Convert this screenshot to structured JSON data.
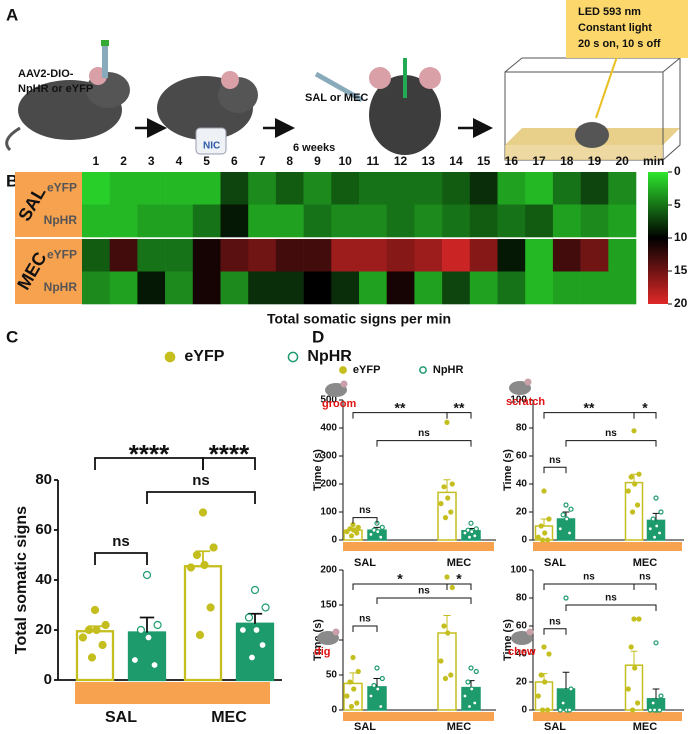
{
  "panel_labels": [
    "A",
    "B",
    "C",
    "D"
  ],
  "panel_a": {
    "virus_lines": [
      "AAV2-DIO-",
      "NpHR or eYFP"
    ],
    "nic": "NIC",
    "wait": "6 weeks",
    "drug": "SAL or MEC",
    "light_lines": [
      "LED 593 nm",
      "Constant light",
      "20 s on, 10 s off"
    ]
  },
  "chart_data": [
    {
      "type": "heatmap",
      "x_categories": [
        1,
        2,
        3,
        4,
        5,
        6,
        7,
        8,
        9,
        10,
        11,
        12,
        13,
        14,
        15,
        16,
        17,
        18,
        19,
        20
      ],
      "x_unit": "min",
      "row_groups": [
        {
          "name": "SAL",
          "rows": [
            "eYFP",
            "NpHR"
          ]
        },
        {
          "name": "MEC",
          "rows": [
            "eYFP",
            "NpHR"
          ]
        }
      ],
      "values": [
        [
          1,
          2,
          2,
          2,
          2,
          7,
          4,
          6,
          4,
          6,
          5,
          5,
          5,
          6,
          8,
          3,
          2,
          5,
          7,
          4
        ],
        [
          2,
          2,
          3,
          3,
          5,
          9,
          3,
          3,
          5,
          4,
          4,
          5,
          4,
          5,
          6,
          5,
          6,
          3,
          4,
          3
        ],
        [
          6,
          13,
          5,
          5,
          11,
          14,
          15,
          13,
          13,
          17,
          17,
          16,
          17,
          19,
          16,
          9,
          2,
          13,
          15,
          3
        ],
        [
          4,
          3,
          9,
          4,
          11,
          4,
          8,
          8,
          10,
          8,
          3,
          11,
          3,
          7,
          3,
          5,
          2,
          3,
          3,
          3
        ]
      ],
      "clim": [
        0,
        20
      ],
      "cticks": [
        0,
        5,
        10,
        15,
        20
      ],
      "colormap": [
        "#2ee62e",
        "#000000",
        "#e02828"
      ],
      "xlabel": "Total somatic signs per min"
    },
    {
      "type": "bar",
      "ylabel": "Total somatic signs",
      "categories": [
        "SAL",
        "MEC"
      ],
      "band_color": "#f7a24f",
      "series": [
        {
          "name": "eYFP",
          "color": "#c4be1e",
          "style": "hollow",
          "values": [
            19.5,
            45.5
          ],
          "errors": [
            2,
            6
          ],
          "points": [
            [
              28,
              22,
              20,
              20,
              17,
              14,
              9
            ],
            [
              67,
              53,
              50,
              46,
              45,
              29,
              18
            ]
          ]
        },
        {
          "name": "NpHR",
          "color": "#1e9b6c",
          "style": "filled",
          "values": [
            19,
            22.5
          ],
          "errors": [
            6,
            4
          ],
          "points": [
            [
              42,
              22,
              20,
              17,
              8,
              6
            ],
            [
              36,
              29,
              25,
              20,
              20,
              14,
              9
            ]
          ]
        }
      ],
      "ylim": [
        0,
        80
      ],
      "yticks": [
        0,
        20,
        40,
        60,
        80
      ],
      "annotations": [
        "****",
        "****",
        "ns",
        "ns"
      ]
    },
    {
      "type": "bar",
      "ylabel": "Time (s)",
      "icon_label": "groom",
      "categories": [
        "SAL",
        "MEC"
      ],
      "band_color": "#f7a24f",
      "series": [
        {
          "name": "eYFP",
          "color": "#c4be1e",
          "style": "hollow",
          "values": [
            35,
            170
          ],
          "errors": [
            8,
            45
          ],
          "points": [
            [
              55,
              45,
              40,
              35,
              30,
              25,
              15
            ],
            [
              420,
              200,
              190,
              150,
              130,
              100,
              80
            ]
          ]
        },
        {
          "name": "NpHR",
          "color": "#1e9b6c",
          "style": "filled",
          "values": [
            35,
            33
          ],
          "errors": [
            10,
            8
          ],
          "points": [
            [
              60,
              45,
              35,
              30,
              20,
              10
            ],
            [
              60,
              40,
              35,
              30,
              25,
              15,
              10
            ]
          ]
        }
      ],
      "ylim": [
        0,
        500
      ],
      "yticks": [
        0,
        100,
        200,
        300,
        400,
        500
      ],
      "annotations": [
        "**",
        "**",
        "ns",
        "ns"
      ]
    },
    {
      "type": "bar",
      "ylabel": "Time (s)",
      "icon_label": "scratch",
      "categories": [
        "SAL",
        "MEC"
      ],
      "band_color": "#f7a24f",
      "series": [
        {
          "name": "eYFP",
          "color": "#c4be1e",
          "style": "hollow",
          "values": [
            10,
            41
          ],
          "errors": [
            5,
            6
          ],
          "points": [
            [
              35,
              15,
              10,
              5,
              2,
              0,
              0
            ],
            [
              78,
              47,
              45,
              40,
              35,
              25,
              20
            ]
          ]
        },
        {
          "name": "NpHR",
          "color": "#1e9b6c",
          "style": "filled",
          "values": [
            15,
            14
          ],
          "errors": [
            5,
            5
          ],
          "points": [
            [
              25,
              22,
              18,
              15,
              8,
              5
            ],
            [
              30,
              20,
              15,
              10,
              8,
              5,
              2
            ]
          ]
        }
      ],
      "ylim": [
        0,
        100
      ],
      "yticks": [
        0,
        20,
        40,
        60,
        80,
        100
      ],
      "annotations": [
        "**",
        "*",
        "ns",
        "ns"
      ]
    },
    {
      "type": "bar",
      "ylabel": "Time (s)",
      "icon_label": "dig",
      "categories": [
        "SAL",
        "MEC"
      ],
      "band_color": "#f7a24f",
      "series": [
        {
          "name": "eYFP",
          "color": "#c4be1e",
          "style": "hollow",
          "values": [
            38,
            110
          ],
          "errors": [
            15,
            25
          ],
          "points": [
            [
              75,
              55,
              40,
              30,
              20,
              10,
              5
            ],
            [
              190,
              175,
              120,
              110,
              70,
              50,
              45
            ]
          ]
        },
        {
          "name": "NpHR",
          "color": "#1e9b6c",
          "style": "filled",
          "values": [
            33,
            32
          ],
          "errors": [
            12,
            10
          ],
          "points": [
            [
              60,
              45,
              35,
              30,
              20,
              5
            ],
            [
              60,
              55,
              40,
              30,
              20,
              10,
              5
            ]
          ]
        }
      ],
      "ylim": [
        0,
        200
      ],
      "yticks": [
        0,
        50,
        100,
        150,
        200
      ],
      "annotations": [
        "*",
        "*",
        "ns",
        "ns"
      ]
    },
    {
      "type": "bar",
      "ylabel": "Time (s)",
      "icon_label": "chew",
      "categories": [
        "SAL",
        "MEC"
      ],
      "band_color": "#f7a24f",
      "series": [
        {
          "name": "eYFP",
          "color": "#c4be1e",
          "style": "hollow",
          "values": [
            20,
            32
          ],
          "errors": [
            6,
            10
          ],
          "points": [
            [
              45,
              40,
              25,
              20,
              10,
              0,
              0
            ],
            [
              65,
              65,
              45,
              30,
              15,
              5,
              0
            ]
          ]
        },
        {
          "name": "NpHR",
          "color": "#1e9b6c",
          "style": "filled",
          "values": [
            15,
            8
          ],
          "errors": [
            12,
            7
          ],
          "points": [
            [
              80,
              15,
              5,
              0,
              0,
              0
            ],
            [
              48,
              10,
              5,
              0,
              0,
              0,
              0
            ]
          ]
        }
      ],
      "ylim": [
        0,
        100
      ],
      "yticks": [
        0,
        20,
        40,
        60,
        80,
        100
      ],
      "annotations": [
        "ns",
        "ns",
        "ns",
        "ns"
      ]
    }
  ]
}
